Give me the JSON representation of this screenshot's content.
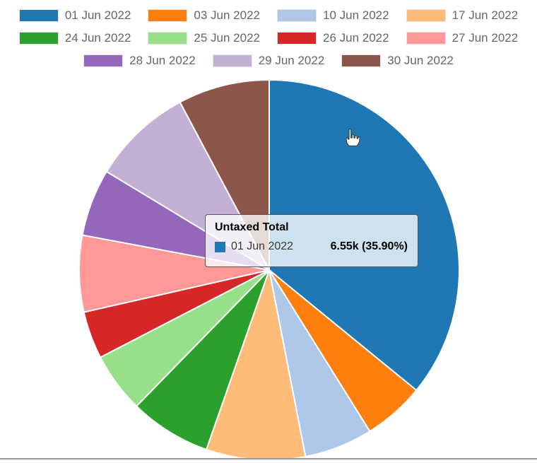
{
  "app": {
    "background": "#ffffff"
  },
  "legend": {
    "position": "top",
    "text_color": "#666666",
    "rows": [
      4,
      4,
      3
    ],
    "items": [
      {
        "label": "01 Jun 2022",
        "color": "#1f77b4"
      },
      {
        "label": "03 Jun 2022",
        "color": "#ff7f0e"
      },
      {
        "label": "10 Jun 2022",
        "color": "#aec7e8"
      },
      {
        "label": "17 Jun 2022",
        "color": "#ffbb78"
      },
      {
        "label": "24 Jun 2022",
        "color": "#2ca02c"
      },
      {
        "label": "25 Jun 2022",
        "color": "#98df8a"
      },
      {
        "label": "26 Jun 2022",
        "color": "#d62728"
      },
      {
        "label": "27 Jun 2022",
        "color": "#ff9896"
      },
      {
        "label": "28 Jun 2022",
        "color": "#9467bd"
      },
      {
        "label": "29 Jun 2022",
        "color": "#c5b0d5"
      },
      {
        "label": "30 Jun 2022",
        "color": "#8c564b"
      }
    ]
  },
  "tooltip": {
    "title": "Untaxed Total",
    "series": {
      "color": "#1f77b4",
      "label": "01 Jun 2022",
      "value": "6.55k (35.90%)"
    }
  },
  "cursor": {
    "type": "hand-pointer"
  },
  "chart_data": {
    "type": "pie",
    "measure": "Untaxed Total",
    "legend_position": "top",
    "start_angle": "12-o-clock",
    "direction": "clockwise",
    "categories": [
      "01 Jun 2022",
      "03 Jun 2022",
      "10 Jun 2022",
      "17 Jun 2022",
      "24 Jun 2022",
      "25 Jun 2022",
      "26 Jun 2022",
      "27 Jun 2022",
      "28 Jun 2022",
      "29 Jun 2022",
      "30 Jun 2022"
    ],
    "values_percent": [
      35.9,
      5.22,
      5.82,
      8.42,
      6.94,
      5.11,
      4.03,
      6.5,
      5.72,
      8.56,
      7.78
    ],
    "colors": [
      "#1f77b4",
      "#ff7f0e",
      "#aec7e8",
      "#ffbb78",
      "#2ca02c",
      "#98df8a",
      "#d62728",
      "#ff9896",
      "#9467bd",
      "#c5b0d5",
      "#8c564b"
    ],
    "labeled_point": {
      "category": "01 Jun 2022",
      "value_display": "6.55k",
      "percent_display": "35.90%"
    }
  }
}
